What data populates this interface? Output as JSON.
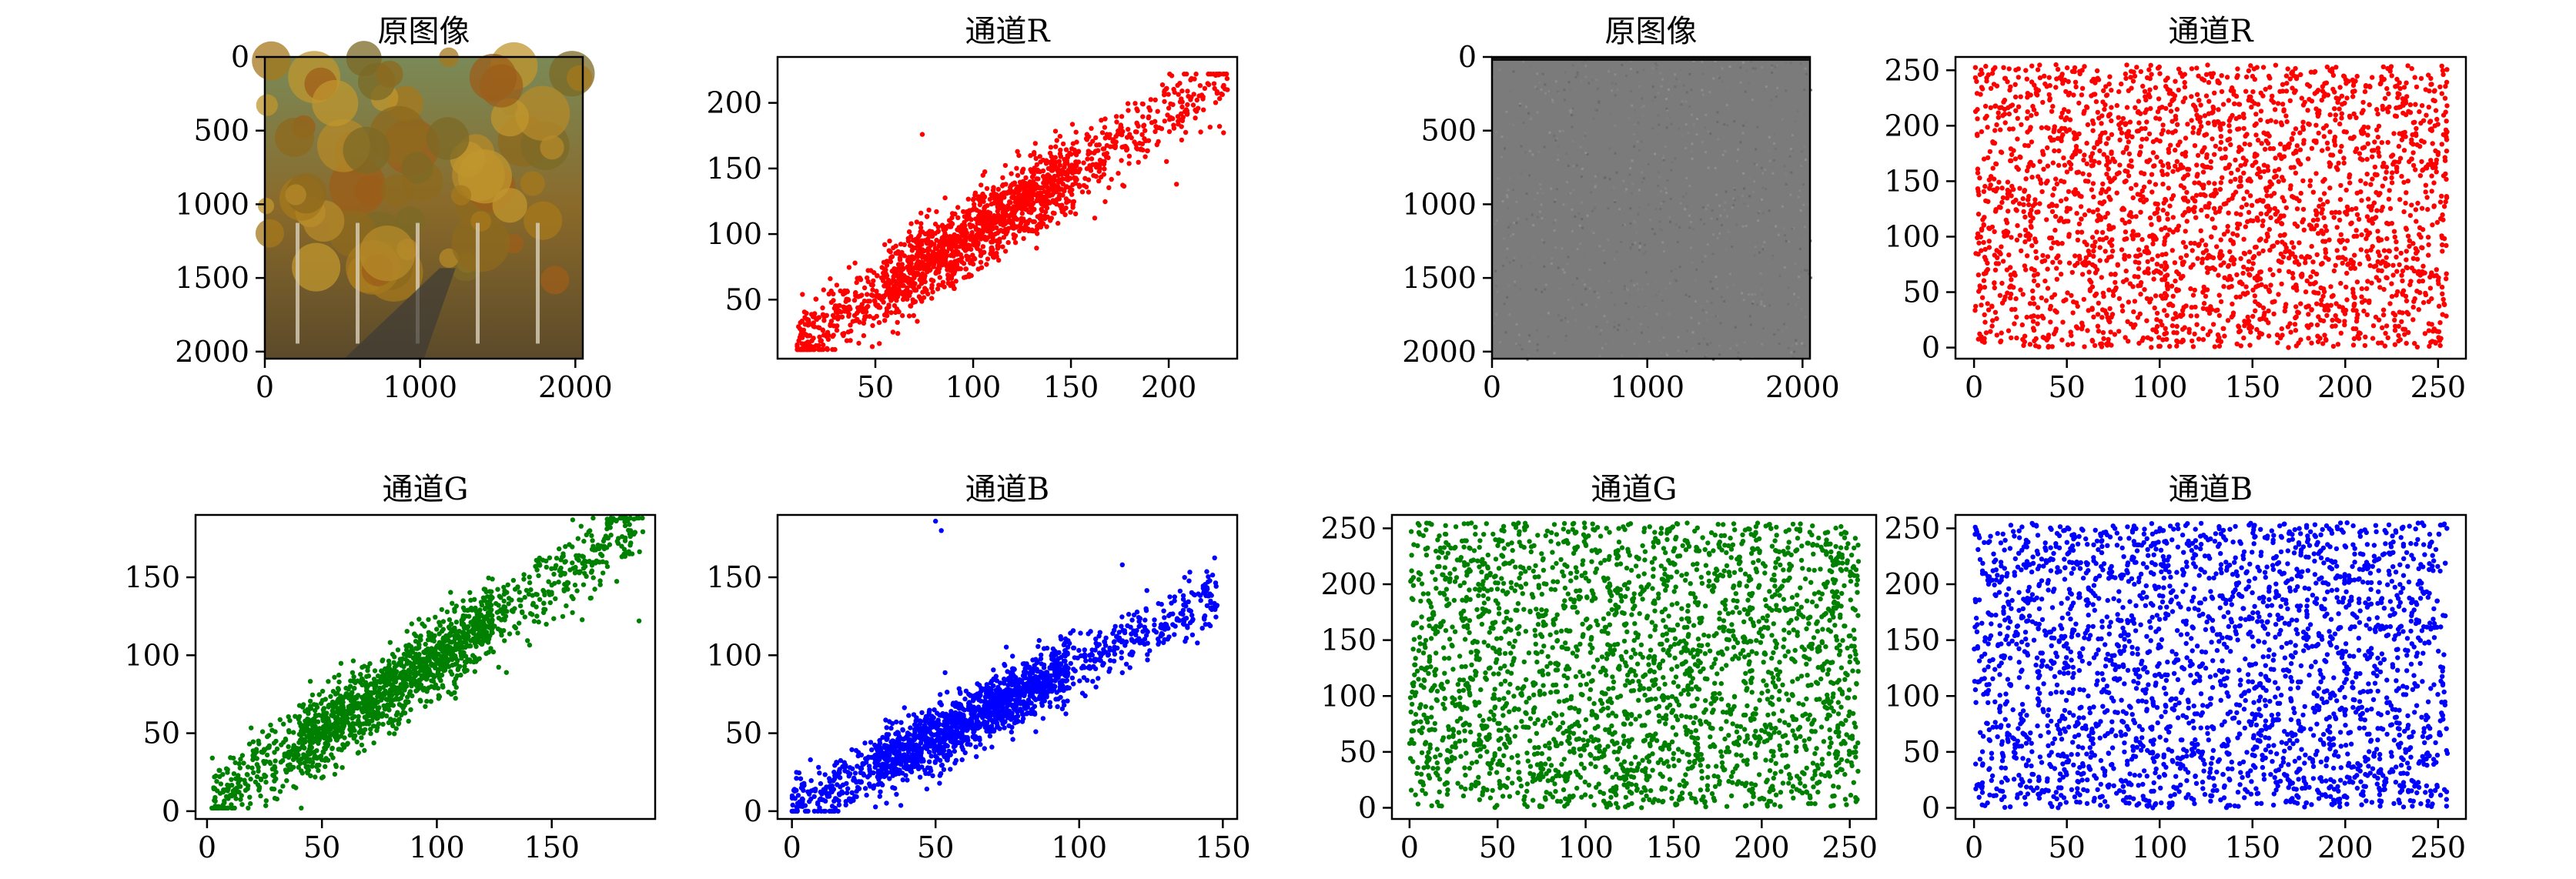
{
  "chart_data": [
    {
      "type": "image",
      "title": "原图像",
      "image_desc": "photo of autumn trees along a road",
      "xticks": [
        "0",
        "1000",
        "2000"
      ],
      "yticks": [
        "0",
        "500",
        "1000",
        "1500",
        "2000"
      ],
      "xlim": [
        0,
        2048
      ],
      "ylim": [
        2048,
        0
      ]
    },
    {
      "type": "scatter",
      "title": "通道R",
      "color": "#ff0000",
      "xlim": [
        0,
        235
      ],
      "ylim": [
        5,
        235
      ],
      "xticks": [
        "50",
        "100",
        "150",
        "200"
      ],
      "xtick_values": [
        50,
        100,
        150,
        200
      ],
      "yticks": [
        "50",
        "100",
        "150",
        "200"
      ],
      "ytick_values": [
        50,
        100,
        150,
        200
      ],
      "correlation": "strong positive",
      "x_range": [
        10,
        230
      ],
      "y_range": [
        12,
        222
      ],
      "trend": {
        "slope": 0.92,
        "intercept": 8,
        "spread": 14
      },
      "points": [
        [
          18,
          14
        ],
        [
          25,
          22
        ],
        [
          40,
          34
        ],
        [
          60,
          64
        ],
        [
          80,
          77
        ],
        [
          100,
          95
        ],
        [
          120,
          118
        ],
        [
          140,
          138
        ],
        [
          160,
          150
        ],
        [
          180,
          176
        ],
        [
          200,
          196
        ],
        [
          210,
          205
        ],
        [
          224,
          221
        ],
        [
          230,
          210
        ],
        [
          74,
          176
        ],
        [
          204,
          138
        ]
      ]
    },
    {
      "type": "scatter",
      "title": "通道G",
      "color": "#008000",
      "xlim": [
        -5,
        195
      ],
      "ylim": [
        -5,
        190
      ],
      "xticks": [
        "0",
        "50",
        "100",
        "150"
      ],
      "xtick_values": [
        0,
        50,
        100,
        150
      ],
      "yticks": [
        "0",
        "50",
        "100",
        "150"
      ],
      "ytick_values": [
        0,
        50,
        100,
        150
      ],
      "correlation": "strong positive",
      "x_range": [
        2,
        190
      ],
      "y_range": [
        2,
        188
      ],
      "trend": {
        "slope": 0.95,
        "intercept": 4,
        "spread": 12
      },
      "points": [
        [
          5,
          3
        ],
        [
          15,
          10
        ],
        [
          30,
          25
        ],
        [
          50,
          50
        ],
        [
          70,
          68
        ],
        [
          90,
          88
        ],
        [
          110,
          105
        ],
        [
          130,
          125
        ],
        [
          150,
          145
        ],
        [
          165,
          160
        ],
        [
          183,
          186
        ],
        [
          185,
          165
        ],
        [
          188,
          122
        ],
        [
          168,
          188
        ]
      ]
    },
    {
      "type": "scatter",
      "title": "通道B",
      "color": "#0000ff",
      "xlim": [
        -5,
        155
      ],
      "ylim": [
        -5,
        190
      ],
      "xticks": [
        "0",
        "50",
        "100",
        "150"
      ],
      "xtick_values": [
        0,
        50,
        100,
        150
      ],
      "yticks": [
        "0",
        "50",
        "100",
        "150"
      ],
      "ytick_values": [
        0,
        50,
        100,
        150
      ],
      "correlation": "positive",
      "x_range": [
        0,
        148
      ],
      "y_range": [
        0,
        186
      ],
      "trend": {
        "slope": 0.92,
        "intercept": 2,
        "spread": 10
      },
      "points": [
        [
          0,
          0
        ],
        [
          2,
          5
        ],
        [
          10,
          8
        ],
        [
          30,
          25
        ],
        [
          50,
          45
        ],
        [
          70,
          62
        ],
        [
          90,
          80
        ],
        [
          110,
          100
        ],
        [
          130,
          120
        ],
        [
          145,
          138
        ],
        [
          148,
          132
        ],
        [
          50,
          186
        ],
        [
          52,
          180
        ],
        [
          115,
          158
        ]
      ]
    },
    {
      "type": "image",
      "title": "原图像",
      "image_desc": "uniform gray noise image",
      "xticks": [
        "0",
        "1000",
        "2000"
      ],
      "yticks": [
        "0",
        "500",
        "1000",
        "1500",
        "2000"
      ],
      "xlim": [
        0,
        2048
      ],
      "ylim": [
        2048,
        0
      ]
    },
    {
      "type": "scatter",
      "title": "通道R",
      "color": "#ff0000",
      "xlim": [
        -10,
        265
      ],
      "ylim": [
        -10,
        262
      ],
      "xticks": [
        "0",
        "50",
        "100",
        "150",
        "200",
        "250"
      ],
      "xtick_values": [
        0,
        50,
        100,
        150,
        200,
        250
      ],
      "yticks": [
        "0",
        "50",
        "100",
        "150",
        "200",
        "250"
      ],
      "ytick_values": [
        0,
        50,
        100,
        150,
        200,
        250
      ],
      "correlation": "none (uniform)",
      "x_range": [
        0,
        255
      ],
      "y_range": [
        0,
        255
      ]
    },
    {
      "type": "scatter",
      "title": "通道G",
      "color": "#008000",
      "xlim": [
        -10,
        265
      ],
      "ylim": [
        -10,
        262
      ],
      "xticks": [
        "0",
        "50",
        "100",
        "150",
        "200",
        "250"
      ],
      "xtick_values": [
        0,
        50,
        100,
        150,
        200,
        250
      ],
      "yticks": [
        "0",
        "50",
        "100",
        "150",
        "200",
        "250"
      ],
      "ytick_values": [
        0,
        50,
        100,
        150,
        200,
        250
      ],
      "correlation": "none (uniform)",
      "x_range": [
        0,
        255
      ],
      "y_range": [
        0,
        255
      ]
    },
    {
      "type": "scatter",
      "title": "通道B",
      "color": "#0000ff",
      "xlim": [
        -10,
        265
      ],
      "ylim": [
        -10,
        262
      ],
      "xticks": [
        "0",
        "50",
        "100",
        "150",
        "200",
        "250"
      ],
      "xtick_values": [
        0,
        50,
        100,
        150,
        200,
        250
      ],
      "yticks": [
        "0",
        "50",
        "100",
        "150",
        "200",
        "250"
      ],
      "ytick_values": [
        0,
        50,
        100,
        150,
        200,
        250
      ],
      "correlation": "none (uniform)",
      "x_range": [
        0,
        255
      ],
      "y_range": [
        0,
        255
      ]
    }
  ]
}
